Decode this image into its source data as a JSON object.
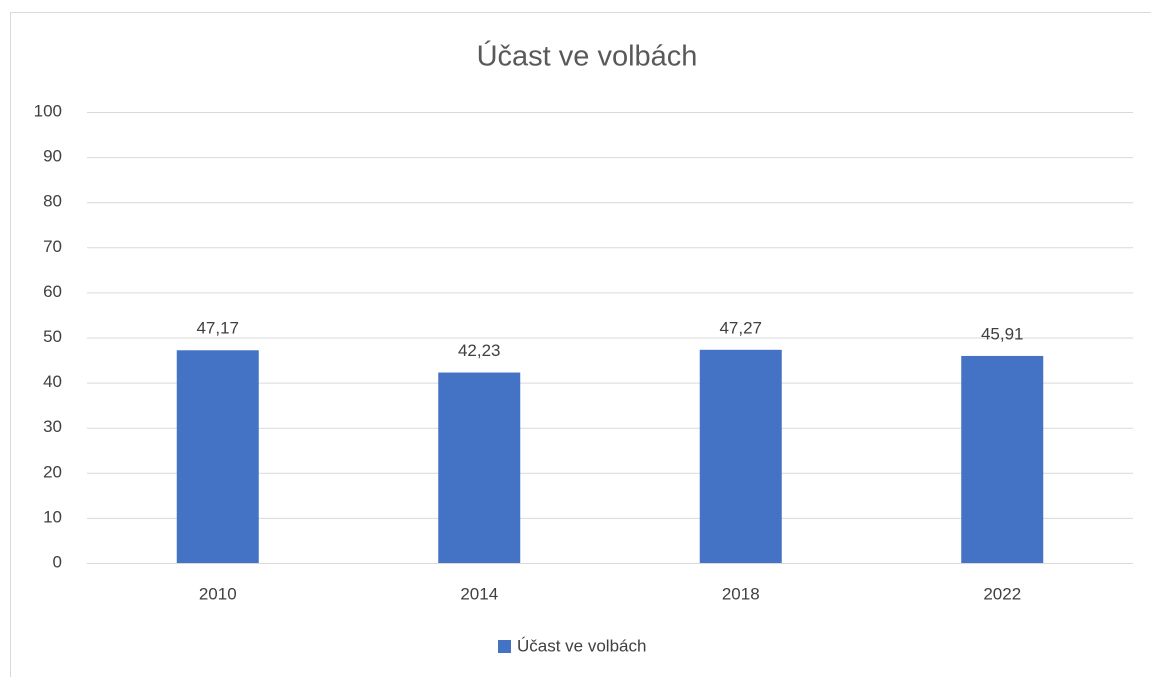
{
  "chart_data": {
    "type": "bar",
    "title": "Účast ve volbách",
    "categories": [
      "2010",
      "2014",
      "2018",
      "2022"
    ],
    "series": [
      {
        "name": "Účast ve volbách",
        "color": "#4472c4",
        "values": [
          47.17,
          42.23,
          47.27,
          45.91
        ],
        "value_labels": [
          "47,17",
          "42,23",
          "47,27",
          "45,91"
        ]
      }
    ],
    "ylim": [
      0,
      100
    ],
    "yticks": [
      0,
      10,
      20,
      30,
      40,
      50,
      60,
      70,
      80,
      90,
      100
    ],
    "grid": true,
    "legend": "bottom"
  }
}
